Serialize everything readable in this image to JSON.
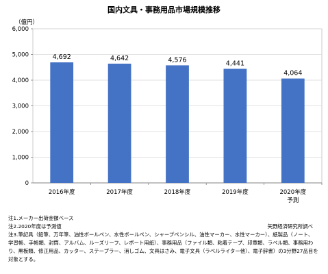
{
  "title": "国内文具・事務用品市場規模推移",
  "chart_data": {
    "type": "bar",
    "title": "国内文具・事務用品市場規模推移",
    "ylabel": "（億円）",
    "categories": [
      "2016年度",
      "2017年度",
      "2018年度",
      "2019年度",
      "2020年度"
    ],
    "category_sublabels": [
      "",
      "",
      "",
      "",
      "予測"
    ],
    "values": [
      4692,
      4642,
      4576,
      4441,
      4064
    ],
    "value_labels": [
      "4,692",
      "4,642",
      "4,576",
      "4,441",
      "4,064"
    ],
    "ylim": [
      0,
      6000
    ],
    "yticks": [
      0,
      1000,
      2000,
      3000,
      4000,
      5000,
      6000
    ],
    "ytick_labels": [
      "0",
      "1,000",
      "2,000",
      "3,000",
      "4,000",
      "5,000",
      "6,000"
    ],
    "bar_color": "#4472c4",
    "grid": true
  },
  "notes": [
    "注1.メーカー出荷金額ベース",
    "注2.2020年度は予測値",
    "注3.筆記具（鉛筆、万年筆、油性ボールペン、水性ボールペン、シャープペンシル、油性マーカー、水性マーカー）、紙製品（ノート、",
    "学習帳、手帳類、封筒、アルバム、ルーズリーフ、レポート用紙）、事務用品（ファイル類、粘着テープ、印章類、ラベル類、事務用わ",
    "り、黒板類、修正用品、カッター、ステープラー、消しゴム、文具はさみ、電子文具（ラベルライター他）、電子辞書）の3分野27品目を",
    "対象とする。"
  ],
  "source": "矢野経済研究所調べ"
}
